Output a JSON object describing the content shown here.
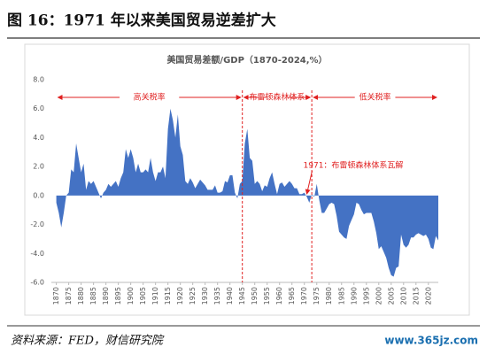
{
  "figure_title": "图 16：1971 年以来美国贸易逆差扩大",
  "source": "资料来源：FED，财信研究院",
  "watermark": "www.365jz.com",
  "chart_data": {
    "type": "area",
    "title": "美国贸易差额/GDP（1870-2024,%）",
    "color": "#4472c4",
    "x": [
      1870,
      1871,
      1872,
      1873,
      1874,
      1875,
      1876,
      1877,
      1878,
      1879,
      1880,
      1881,
      1882,
      1883,
      1884,
      1885,
      1886,
      1887,
      1888,
      1889,
      1890,
      1891,
      1892,
      1893,
      1894,
      1895,
      1896,
      1897,
      1898,
      1899,
      1900,
      1901,
      1902,
      1903,
      1904,
      1905,
      1906,
      1907,
      1908,
      1909,
      1910,
      1911,
      1912,
      1913,
      1914,
      1915,
      1916,
      1917,
      1918,
      1919,
      1920,
      1921,
      1922,
      1923,
      1924,
      1925,
      1926,
      1927,
      1928,
      1929,
      1930,
      1931,
      1932,
      1933,
      1934,
      1935,
      1936,
      1937,
      1938,
      1939,
      1940,
      1941,
      1942,
      1943,
      1944,
      1945,
      1946,
      1947,
      1948,
      1949,
      1950,
      1951,
      1952,
      1953,
      1954,
      1955,
      1956,
      1957,
      1958,
      1959,
      1960,
      1961,
      1962,
      1963,
      1964,
      1965,
      1966,
      1967,
      1968,
      1969,
      1970,
      1971,
      1972,
      1973,
      1974,
      1975,
      1976,
      1977,
      1978,
      1979,
      1980,
      1981,
      1982,
      1983,
      1984,
      1985,
      1986,
      1987,
      1988,
      1989,
      1990,
      1991,
      1992,
      1993,
      1994,
      1995,
      1996,
      1997,
      1998,
      1999,
      2000,
      2001,
      2002,
      2003,
      2004,
      2005,
      2006,
      2007,
      2008,
      2009,
      2010,
      2011,
      2012,
      2013,
      2014,
      2015,
      2016,
      2017,
      2018,
      2019,
      2020,
      2021,
      2022,
      2023,
      2024
    ],
    "values": [
      -0.5,
      -1.2,
      -2.2,
      -1.2,
      0.0,
      0.2,
      1.8,
      1.6,
      3.6,
      2.6,
      1.6,
      2.2,
      0.4,
      1.0,
      0.8,
      1.0,
      0.6,
      0.2,
      -0.2,
      0.2,
      0.4,
      0.8,
      0.6,
      0.8,
      1.0,
      0.6,
      1.2,
      1.6,
      3.2,
      2.6,
      3.2,
      2.6,
      1.6,
      2.2,
      1.6,
      1.6,
      1.8,
      1.6,
      2.6,
      1.6,
      1.0,
      1.6,
      1.6,
      2.0,
      1.2,
      4.6,
      6.0,
      5.2,
      4.0,
      5.6,
      3.4,
      2.8,
      1.0,
      0.8,
      1.2,
      0.9,
      0.5,
      0.8,
      1.1,
      0.9,
      0.7,
      0.4,
      0.4,
      0.4,
      0.7,
      0.2,
      0.2,
      0.3,
      1.0,
      0.9,
      1.4,
      1.4,
      0.2,
      -0.2,
      0.8,
      1.0,
      3.6,
      4.6,
      2.6,
      2.4,
      0.8,
      1.0,
      0.8,
      0.3,
      0.7,
      0.6,
      1.2,
      1.6,
      0.8,
      0.1,
      0.8,
      0.9,
      0.6,
      0.8,
      1.0,
      0.8,
      0.5,
      0.5,
      0.1,
      0.1,
      0.2,
      -0.1,
      -0.5,
      0.1,
      -0.1,
      0.8,
      -0.3,
      -1.2,
      -1.2,
      -0.9,
      -0.6,
      -0.5,
      -0.6,
      -1.4,
      -2.5,
      -2.7,
      -2.9,
      -3.0,
      -2.1,
      -1.7,
      -1.3,
      -0.5,
      -0.6,
      -1.0,
      -1.3,
      -1.2,
      -1.2,
      -1.2,
      -1.8,
      -2.6,
      -3.7,
      -3.5,
      -3.9,
      -4.3,
      -5.0,
      -5.5,
      -5.6,
      -5.0,
      -4.9,
      -2.7,
      -3.4,
      -3.6,
      -3.4,
      -2.9,
      -2.9,
      -2.7,
      -2.6,
      -2.7,
      -2.8,
      -2.7,
      -3.0,
      -3.6,
      -3.7,
      -2.8,
      -3.1
    ],
    "xlim": [
      1868,
      2024
    ],
    "xticks": [
      1870,
      1875,
      1880,
      1885,
      1890,
      1895,
      1900,
      1905,
      1910,
      1915,
      1920,
      1925,
      1930,
      1935,
      1940,
      1945,
      1950,
      1955,
      1960,
      1965,
      1970,
      1975,
      1980,
      1985,
      1990,
      1995,
      2000,
      2005,
      2010,
      2015,
      2020
    ],
    "ylim": [
      -6,
      8
    ],
    "yticks": [
      {
        "value": -6,
        "label": "-6.0"
      },
      {
        "value": -4,
        "label": "-4.0"
      },
      {
        "value": -2,
        "label": "-2.0"
      },
      {
        "value": 0,
        "label": "0.0"
      },
      {
        "value": 2,
        "label": "2.0"
      },
      {
        "value": 4,
        "label": "4.0"
      },
      {
        "value": 6,
        "label": "6.0"
      },
      {
        "value": 8,
        "label": "8.0"
      }
    ],
    "periods": [
      {
        "label": "高关税率",
        "start": 1870,
        "end": 1945
      },
      {
        "label": "布雷顿森林体系",
        "start": 1945,
        "end": 1973
      },
      {
        "label": "低关税率",
        "start": 1973,
        "end": 2024
      }
    ],
    "annotation": {
      "text": "1971：布雷顿森林体系瓦解",
      "x": 1971,
      "y": 0
    }
  }
}
